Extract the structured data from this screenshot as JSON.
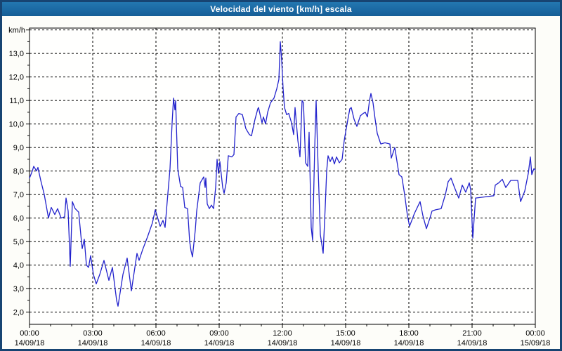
{
  "window": {
    "title": "Velocidad del viento [km/h] escala"
  },
  "colors": {
    "titlebar": "#1b69a3",
    "window_border": "#174472",
    "line": "#2222cc",
    "plot_background": "#fffffe",
    "grid": "#000000",
    "text": "#000000"
  },
  "chart_data": {
    "type": "line",
    "title": "Velocidad del viento [km/h] escala",
    "ylabel": "km/h",
    "y_unit_label": "km/h",
    "ylim": [
      1.48,
      14.08
    ],
    "grid": "dashed",
    "legend": "none",
    "x_hours_total": 24,
    "x_minor_tick_hours": 1,
    "y_minor_tick_step": 0.5,
    "y_gridline_values": [
      2,
      3,
      4,
      5,
      6,
      7,
      8,
      9,
      10,
      11,
      12,
      13,
      14
    ],
    "y_ticks": [
      {
        "value": 2,
        "label": "2,0"
      },
      {
        "value": 3,
        "label": "3,0"
      },
      {
        "value": 4,
        "label": "4,0"
      },
      {
        "value": 5,
        "label": "5,0"
      },
      {
        "value": 6,
        "label": "6,0"
      },
      {
        "value": 7,
        "label": "7,0"
      },
      {
        "value": 8,
        "label": "8,0"
      },
      {
        "value": 9,
        "label": "9,0"
      },
      {
        "value": 10,
        "label": "10,0"
      },
      {
        "value": 11,
        "label": "11,0"
      },
      {
        "value": 12,
        "label": "12,0"
      },
      {
        "value": 13,
        "label": "13,0"
      }
    ],
    "x_ticks": [
      {
        "hour": 0,
        "time": "00:00",
        "date": "14/09/18"
      },
      {
        "hour": 3,
        "time": "03:00",
        "date": "14/09/18"
      },
      {
        "hour": 6,
        "time": "06:00",
        "date": "14/09/18"
      },
      {
        "hour": 9,
        "time": "09:00",
        "date": "14/09/18"
      },
      {
        "hour": 12,
        "time": "12:00",
        "date": "14/09/18"
      },
      {
        "hour": 15,
        "time": "15:00",
        "date": "14/09/18"
      },
      {
        "hour": 18,
        "time": "18:00",
        "date": "14/09/18"
      },
      {
        "hour": 21,
        "time": "21:00",
        "date": "14/09/18"
      },
      {
        "hour": 24,
        "time": "00:00",
        "date": "15/09/18"
      }
    ],
    "series_name": "Velocidad del viento",
    "points_minutes_kmh": [
      [
        0,
        7.7
      ],
      [
        8,
        8.0
      ],
      [
        12,
        8.2
      ],
      [
        20,
        8.0
      ],
      [
        24,
        8.15
      ],
      [
        32,
        7.6
      ],
      [
        42,
        7.0
      ],
      [
        48,
        6.5
      ],
      [
        54,
        6.0
      ],
      [
        62,
        6.45
      ],
      [
        72,
        6.15
      ],
      [
        80,
        6.4
      ],
      [
        90,
        6.0
      ],
      [
        100,
        6.05
      ],
      [
        104,
        6.85
      ],
      [
        110,
        6.3
      ],
      [
        116,
        3.95
      ],
      [
        122,
        6.7
      ],
      [
        130,
        6.4
      ],
      [
        140,
        6.25
      ],
      [
        146,
        5.3
      ],
      [
        150,
        4.7
      ],
      [
        156,
        5.1
      ],
      [
        162,
        4.0
      ],
      [
        168,
        3.9
      ],
      [
        174,
        4.4
      ],
      [
        182,
        3.6
      ],
      [
        190,
        3.2
      ],
      [
        200,
        3.6
      ],
      [
        212,
        4.2
      ],
      [
        226,
        3.35
      ],
      [
        236,
        3.9
      ],
      [
        248,
        2.5
      ],
      [
        252,
        2.25
      ],
      [
        266,
        3.6
      ],
      [
        278,
        4.3
      ],
      [
        290,
        2.9
      ],
      [
        306,
        4.5
      ],
      [
        312,
        4.2
      ],
      [
        322,
        4.65
      ],
      [
        336,
        5.2
      ],
      [
        350,
        5.8
      ],
      [
        358,
        6.35
      ],
      [
        372,
        5.65
      ],
      [
        380,
        5.9
      ],
      [
        386,
        5.6
      ],
      [
        392,
        6.7
      ],
      [
        400,
        8.1
      ],
      [
        406,
        10.05
      ],
      [
        410,
        11.1
      ],
      [
        414,
        10.6
      ],
      [
        416,
        11.0
      ],
      [
        422,
        8.1
      ],
      [
        430,
        7.35
      ],
      [
        436,
        7.3
      ],
      [
        442,
        6.45
      ],
      [
        450,
        6.4
      ],
      [
        456,
        5.0
      ],
      [
        460,
        4.6
      ],
      [
        464,
        4.35
      ],
      [
        472,
        5.5
      ],
      [
        476,
        6.3
      ],
      [
        486,
        7.5
      ],
      [
        496,
        7.75
      ],
      [
        500,
        7.3
      ],
      [
        502,
        7.7
      ],
      [
        506,
        6.6
      ],
      [
        512,
        6.4
      ],
      [
        518,
        6.55
      ],
      [
        524,
        6.4
      ],
      [
        530,
        7.3
      ],
      [
        534,
        8.5
      ],
      [
        538,
        7.9
      ],
      [
        542,
        8.4
      ],
      [
        550,
        7.3
      ],
      [
        554,
        7.05
      ],
      [
        560,
        7.5
      ],
      [
        566,
        8.65
      ],
      [
        576,
        8.6
      ],
      [
        582,
        8.7
      ],
      [
        588,
        10.3
      ],
      [
        596,
        10.45
      ],
      [
        606,
        10.4
      ],
      [
        616,
        9.8
      ],
      [
        626,
        9.55
      ],
      [
        632,
        9.5
      ],
      [
        642,
        10.2
      ],
      [
        650,
        10.65
      ],
      [
        652,
        10.7
      ],
      [
        658,
        10.3
      ],
      [
        662,
        10.05
      ],
      [
        666,
        10.3
      ],
      [
        672,
        10.0
      ],
      [
        678,
        10.5
      ],
      [
        686,
        10.9
      ],
      [
        696,
        11.1
      ],
      [
        704,
        11.5
      ],
      [
        710,
        11.9
      ],
      [
        714,
        13.5
      ],
      [
        718,
        12.7
      ],
      [
        722,
        11.5
      ],
      [
        726,
        10.7
      ],
      [
        732,
        10.4
      ],
      [
        738,
        10.45
      ],
      [
        746,
        10.05
      ],
      [
        752,
        9.55
      ],
      [
        756,
        10.7
      ],
      [
        764,
        9.3
      ],
      [
        770,
        8.6
      ],
      [
        776,
        11.0
      ],
      [
        780,
        10.9
      ],
      [
        786,
        8.35
      ],
      [
        792,
        8.2
      ],
      [
        796,
        9.65
      ],
      [
        802,
        5.6
      ],
      [
        806,
        5.05
      ],
      [
        812,
        9.0
      ],
      [
        816,
        11.0
      ],
      [
        822,
        8.0
      ],
      [
        828,
        5.3
      ],
      [
        836,
        4.5
      ],
      [
        842,
        6.5
      ],
      [
        846,
        8.0
      ],
      [
        850,
        8.65
      ],
      [
        856,
        8.4
      ],
      [
        862,
        8.6
      ],
      [
        868,
        8.3
      ],
      [
        874,
        8.6
      ],
      [
        882,
        8.35
      ],
      [
        890,
        8.5
      ],
      [
        896,
        9.3
      ],
      [
        904,
        10.0
      ],
      [
        912,
        10.65
      ],
      [
        916,
        10.7
      ],
      [
        924,
        10.2
      ],
      [
        932,
        9.9
      ],
      [
        942,
        10.35
      ],
      [
        950,
        10.45
      ],
      [
        956,
        10.5
      ],
      [
        962,
        10.3
      ],
      [
        968,
        11.0
      ],
      [
        972,
        11.3
      ],
      [
        978,
        10.9
      ],
      [
        984,
        10.2
      ],
      [
        990,
        9.6
      ],
      [
        1000,
        9.15
      ],
      [
        1012,
        9.2
      ],
      [
        1026,
        9.15
      ],
      [
        1030,
        8.55
      ],
      [
        1040,
        9.0
      ],
      [
        1052,
        7.85
      ],
      [
        1060,
        7.75
      ],
      [
        1068,
        7.0
      ],
      [
        1076,
        6.1
      ],
      [
        1082,
        5.65
      ],
      [
        1096,
        6.2
      ],
      [
        1112,
        6.7
      ],
      [
        1120,
        6.1
      ],
      [
        1130,
        5.55
      ],
      [
        1140,
        6.0
      ],
      [
        1146,
        6.3
      ],
      [
        1156,
        6.35
      ],
      [
        1172,
        6.4
      ],
      [
        1184,
        7.0
      ],
      [
        1192,
        7.55
      ],
      [
        1200,
        7.7
      ],
      [
        1210,
        7.3
      ],
      [
        1222,
        6.85
      ],
      [
        1232,
        7.4
      ],
      [
        1242,
        7.1
      ],
      [
        1252,
        7.5
      ],
      [
        1256,
        7.2
      ],
      [
        1262,
        5.15
      ],
      [
        1270,
        6.85
      ],
      [
        1296,
        6.9
      ],
      [
        1322,
        6.95
      ],
      [
        1326,
        7.4
      ],
      [
        1336,
        7.5
      ],
      [
        1346,
        7.65
      ],
      [
        1356,
        7.3
      ],
      [
        1370,
        7.6
      ],
      [
        1390,
        7.6
      ],
      [
        1398,
        6.7
      ],
      [
        1410,
        7.15
      ],
      [
        1420,
        7.9
      ],
      [
        1426,
        8.6
      ],
      [
        1430,
        7.85
      ],
      [
        1436,
        8.1
      ],
      [
        1440,
        8.05
      ]
    ]
  }
}
